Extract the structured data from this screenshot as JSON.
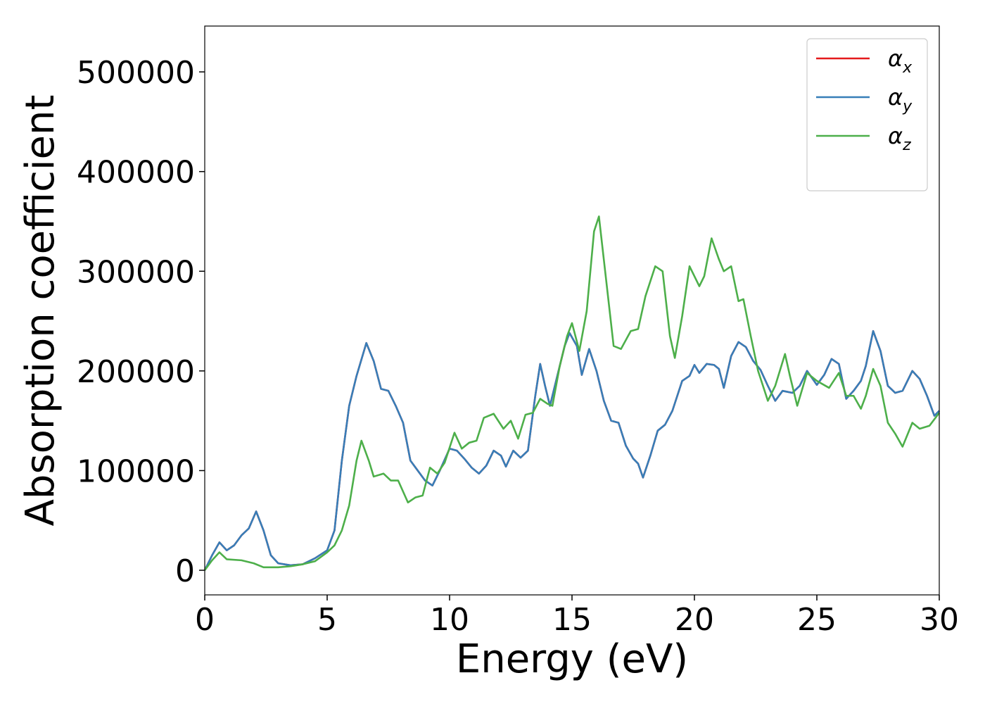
{
  "chart_data": {
    "type": "line",
    "xlabel": "Energy (eV)",
    "ylabel": "Absorption coefficient",
    "xlim": [
      0,
      30
    ],
    "ylim": [
      -24700,
      546000
    ],
    "xticks": [
      0,
      5,
      10,
      15,
      20,
      25,
      30
    ],
    "yticks": [
      0,
      100000,
      200000,
      300000,
      400000,
      500000
    ],
    "legend": "upper right",
    "series": [
      {
        "name": "αx",
        "color": "#e41a1c",
        "x": [
          0,
          0.3,
          0.6,
          0.9,
          1.2,
          1.5,
          1.8,
          2.1,
          2.4,
          2.7,
          3.0,
          3.5,
          4.0,
          4.5,
          5.0,
          5.3,
          5.6,
          5.9,
          6.2,
          6.6,
          6.9,
          7.2,
          7.5,
          7.8,
          8.1,
          8.4,
          8.7,
          9.0,
          9.3,
          9.6,
          10.0,
          10.3,
          10.6,
          10.9,
          11.2,
          11.5,
          11.8,
          12.1,
          12.3,
          12.6,
          12.9,
          13.2,
          13.5,
          13.7,
          13.9,
          14.1,
          14.4,
          14.7,
          14.9,
          15.2,
          15.4,
          15.7,
          16.0,
          16.3,
          16.6,
          16.9,
          17.2,
          17.5,
          17.7,
          17.9,
          18.2,
          18.5,
          18.8,
          19.1,
          19.5,
          19.8,
          20.0,
          20.2,
          20.5,
          20.8,
          21.0,
          21.2,
          21.5,
          21.8,
          22.1,
          22.4,
          22.7,
          23.0,
          23.3,
          23.6,
          24.0,
          24.3,
          24.6,
          25.0,
          25.3,
          25.6,
          25.9,
          26.2,
          26.5,
          26.8,
          27.0,
          27.3,
          27.6,
          27.9,
          28.2,
          28.5,
          28.9,
          29.2,
          29.5,
          29.8,
          30.0
        ],
        "values": [
          0,
          15000,
          28000,
          20000,
          25000,
          35000,
          42000,
          59000,
          40000,
          15000,
          7000,
          5000,
          6000,
          12000,
          20000,
          40000,
          110000,
          165000,
          195000,
          228000,
          210000,
          182000,
          180000,
          165000,
          148000,
          110000,
          100000,
          90000,
          85000,
          100000,
          122000,
          120000,
          112000,
          103000,
          97000,
          105000,
          120000,
          115000,
          104000,
          120000,
          113000,
          120000,
          175000,
          207000,
          185000,
          165000,
          195000,
          225000,
          238000,
          225000,
          196000,
          222000,
          200000,
          170000,
          150000,
          148000,
          125000,
          112000,
          107000,
          93000,
          115000,
          140000,
          146000,
          160000,
          190000,
          195000,
          206000,
          198000,
          207000,
          206000,
          202000,
          183000,
          215000,
          229000,
          224000,
          210000,
          201000,
          185000,
          170000,
          180000,
          178000,
          185000,
          200000,
          186000,
          196000,
          212000,
          207000,
          172000,
          180000,
          190000,
          205000,
          240000,
          220000,
          185000,
          178000,
          180000,
          200000,
          192000,
          175000,
          155000,
          160000
        ]
      },
      {
        "name": "αy",
        "color": "#377eb8",
        "x": [
          0,
          0.3,
          0.6,
          0.9,
          1.2,
          1.5,
          1.8,
          2.1,
          2.4,
          2.7,
          3.0,
          3.5,
          4.0,
          4.5,
          5.0,
          5.3,
          5.6,
          5.9,
          6.2,
          6.6,
          6.9,
          7.2,
          7.5,
          7.8,
          8.1,
          8.4,
          8.7,
          9.0,
          9.3,
          9.6,
          10.0,
          10.3,
          10.6,
          10.9,
          11.2,
          11.5,
          11.8,
          12.1,
          12.3,
          12.6,
          12.9,
          13.2,
          13.5,
          13.7,
          13.9,
          14.1,
          14.4,
          14.7,
          14.9,
          15.2,
          15.4,
          15.7,
          16.0,
          16.3,
          16.6,
          16.9,
          17.2,
          17.5,
          17.7,
          17.9,
          18.2,
          18.5,
          18.8,
          19.1,
          19.5,
          19.8,
          20.0,
          20.2,
          20.5,
          20.8,
          21.0,
          21.2,
          21.5,
          21.8,
          22.1,
          22.4,
          22.7,
          23.0,
          23.3,
          23.6,
          24.0,
          24.3,
          24.6,
          25.0,
          25.3,
          25.6,
          25.9,
          26.2,
          26.5,
          26.8,
          27.0,
          27.3,
          27.6,
          27.9,
          28.2,
          28.5,
          28.9,
          29.2,
          29.5,
          29.8,
          30.0
        ],
        "values": [
          0,
          15000,
          28000,
          20000,
          25000,
          35000,
          42000,
          59000,
          40000,
          15000,
          7000,
          5000,
          6000,
          12000,
          20000,
          40000,
          110000,
          165000,
          195000,
          228000,
          210000,
          182000,
          180000,
          165000,
          148000,
          110000,
          100000,
          90000,
          85000,
          100000,
          122000,
          120000,
          112000,
          103000,
          97000,
          105000,
          120000,
          115000,
          104000,
          120000,
          113000,
          120000,
          175000,
          207000,
          185000,
          165000,
          195000,
          225000,
          238000,
          225000,
          196000,
          222000,
          200000,
          170000,
          150000,
          148000,
          125000,
          112000,
          107000,
          93000,
          115000,
          140000,
          146000,
          160000,
          190000,
          195000,
          206000,
          198000,
          207000,
          206000,
          202000,
          183000,
          215000,
          229000,
          224000,
          210000,
          201000,
          185000,
          170000,
          180000,
          178000,
          185000,
          200000,
          186000,
          196000,
          212000,
          207000,
          172000,
          180000,
          190000,
          205000,
          240000,
          220000,
          185000,
          178000,
          180000,
          200000,
          192000,
          175000,
          155000,
          160000
        ]
      },
      {
        "name": "αz",
        "color": "#4daf4a",
        "x": [
          0,
          0.3,
          0.6,
          0.9,
          1.5,
          2.0,
          2.4,
          3.0,
          3.5,
          4.0,
          4.5,
          5.0,
          5.3,
          5.6,
          5.9,
          6.2,
          6.4,
          6.7,
          6.9,
          7.3,
          7.6,
          7.9,
          8.3,
          8.6,
          8.9,
          9.2,
          9.5,
          9.8,
          10.2,
          10.5,
          10.8,
          11.1,
          11.4,
          11.8,
          12.2,
          12.5,
          12.8,
          13.1,
          13.4,
          13.7,
          14.0,
          14.2,
          14.5,
          14.8,
          15.0,
          15.3,
          15.6,
          15.9,
          16.1,
          16.4,
          16.7,
          17.0,
          17.4,
          17.7,
          18.0,
          18.4,
          18.7,
          19.0,
          19.2,
          19.5,
          19.8,
          20.2,
          20.4,
          20.7,
          21.0,
          21.2,
          21.5,
          21.8,
          22.0,
          22.3,
          22.6,
          23.0,
          23.3,
          23.7,
          23.9,
          24.2,
          24.6,
          25.0,
          25.5,
          25.9,
          26.2,
          26.5,
          26.8,
          27.0,
          27.3,
          27.6,
          27.9,
          28.2,
          28.5,
          28.9,
          29.2,
          29.6,
          30.0
        ],
        "values": [
          0,
          10000,
          18000,
          11000,
          10000,
          7000,
          3000,
          3000,
          4000,
          6000,
          9000,
          18000,
          25000,
          40000,
          65000,
          110000,
          130000,
          110000,
          94000,
          97000,
          90000,
          90000,
          68000,
          73000,
          75000,
          103000,
          97000,
          108000,
          138000,
          122000,
          128000,
          130000,
          153000,
          157000,
          142000,
          150000,
          132000,
          156000,
          158000,
          172000,
          167000,
          165000,
          205000,
          235000,
          248000,
          220000,
          260000,
          340000,
          355000,
          290000,
          225000,
          222000,
          240000,
          242000,
          275000,
          305000,
          300000,
          235000,
          213000,
          255000,
          305000,
          285000,
          295000,
          333000,
          312000,
          300000,
          305000,
          270000,
          272000,
          235000,
          200000,
          170000,
          185000,
          217000,
          195000,
          165000,
          198000,
          190000,
          183000,
          198000,
          175000,
          175000,
          162000,
          175000,
          202000,
          185000,
          148000,
          137000,
          124000,
          148000,
          142000,
          145000,
          158000
        ]
      }
    ]
  }
}
